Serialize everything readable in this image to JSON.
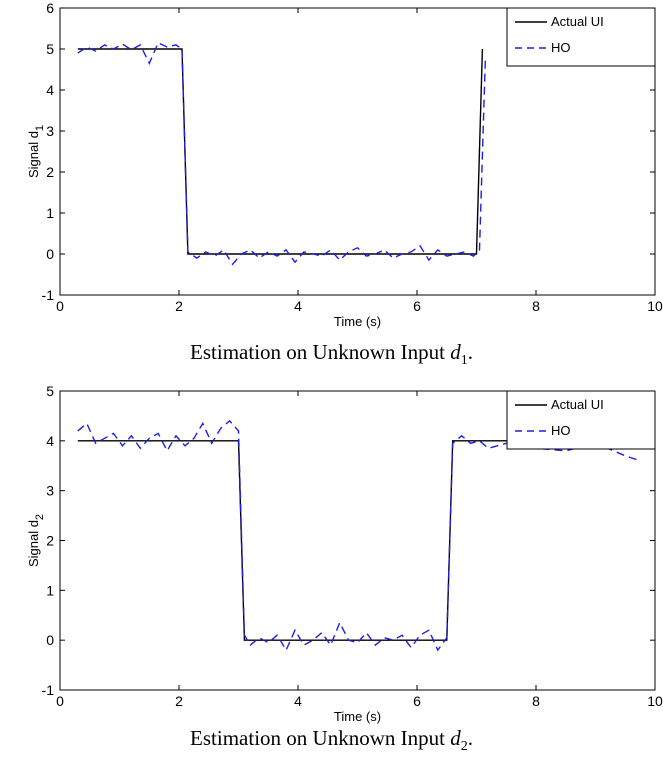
{
  "chart_data": [
    {
      "type": "line",
      "xlabel": "Time (s)",
      "ylabel_main": "Signal d",
      "ylabel_sub": "1",
      "xlim": [
        0,
        10
      ],
      "ylim": [
        -1,
        6
      ],
      "xticks": [
        0,
        2,
        4,
        6,
        8,
        10
      ],
      "yticks": [
        -1,
        0,
        1,
        2,
        3,
        4,
        5,
        6
      ],
      "grid": false,
      "legend_position": "top-right",
      "series": [
        {
          "name": "Actual UI",
          "style": "solid",
          "color": "#000000",
          "x": [
            0.3,
            2.05,
            2.15,
            7.0,
            7.1
          ],
          "y": [
            5,
            5,
            0,
            0,
            5
          ]
        },
        {
          "name": "HO",
          "style": "dashed",
          "color": "#1f1fe6",
          "x": [
            0.3,
            0.45,
            0.6,
            0.75,
            0.9,
            1.05,
            1.2,
            1.35,
            1.5,
            1.65,
            1.8,
            1.95,
            2.05,
            2.15,
            2.3,
            2.45,
            2.6,
            2.75,
            2.9,
            3.05,
            3.2,
            3.35,
            3.5,
            3.65,
            3.8,
            3.95,
            4.1,
            4.25,
            4.4,
            4.55,
            4.7,
            4.85,
            5.0,
            5.15,
            5.3,
            5.45,
            5.6,
            5.75,
            5.9,
            6.05,
            6.2,
            6.35,
            6.5,
            6.65,
            6.8,
            6.95,
            7.05,
            7.15
          ],
          "y": [
            4.9,
            5.05,
            4.95,
            5.1,
            5.0,
            5.12,
            4.98,
            5.1,
            4.65,
            5.15,
            5.05,
            5.1,
            5.0,
            0.05,
            -0.1,
            0.05,
            -0.05,
            0.1,
            -0.25,
            0.0,
            0.1,
            -0.1,
            0.05,
            -0.05,
            0.1,
            -0.2,
            0.05,
            0.0,
            -0.05,
            0.1,
            -0.15,
            0.05,
            0.15,
            -0.05,
            0.0,
            0.1,
            -0.1,
            0.0,
            0.05,
            0.2,
            -0.15,
            0.1,
            -0.05,
            0.0,
            0.05,
            -0.05,
            0.1,
            4.8
          ]
        }
      ]
    },
    {
      "type": "line",
      "xlabel": "Time (s)",
      "ylabel_main": "Signal d",
      "ylabel_sub": "2",
      "xlim": [
        0,
        10
      ],
      "ylim": [
        -1,
        5
      ],
      "xticks": [
        0,
        2,
        4,
        6,
        8,
        10
      ],
      "yticks": [
        -1,
        0,
        1,
        2,
        3,
        4,
        5
      ],
      "grid": false,
      "legend_position": "top-right",
      "series": [
        {
          "name": "Actual UI",
          "style": "solid",
          "color": "#000000",
          "x": [
            0.3,
            3.0,
            3.1,
            6.5,
            6.6,
            9.75
          ],
          "y": [
            4,
            4,
            0,
            0,
            4,
            4
          ]
        },
        {
          "name": "HO",
          "style": "dashed",
          "color": "#1f1fe6",
          "x": [
            0.3,
            0.45,
            0.6,
            0.75,
            0.9,
            1.05,
            1.2,
            1.35,
            1.5,
            1.65,
            1.8,
            1.95,
            2.1,
            2.25,
            2.4,
            2.55,
            2.7,
            2.85,
            3.0,
            3.1,
            3.2,
            3.35,
            3.5,
            3.65,
            3.8,
            3.95,
            4.1,
            4.25,
            4.4,
            4.55,
            4.7,
            4.85,
            5.0,
            5.15,
            5.3,
            5.45,
            5.6,
            5.75,
            5.9,
            6.05,
            6.2,
            6.35,
            6.5,
            6.6,
            6.75,
            6.9,
            7.05,
            7.2,
            7.5,
            8.0,
            8.5,
            9.0,
            9.5,
            9.75
          ],
          "y": [
            4.2,
            4.35,
            3.95,
            4.05,
            4.15,
            3.9,
            4.1,
            3.85,
            4.05,
            4.15,
            3.8,
            4.1,
            3.9,
            4.05,
            4.35,
            3.95,
            4.25,
            4.4,
            4.2,
            0.1,
            -0.1,
            0.05,
            -0.05,
            0.1,
            -0.2,
            0.2,
            -0.1,
            0.0,
            0.15,
            -0.1,
            0.35,
            0.0,
            -0.05,
            0.15,
            -0.1,
            0.05,
            0.0,
            0.1,
            -0.15,
            0.1,
            0.2,
            -0.2,
            0.05,
            3.95,
            4.1,
            3.95,
            4.0,
            3.85,
            3.95,
            3.85,
            3.8,
            3.95,
            3.7,
            3.6
          ]
        }
      ]
    }
  ],
  "captions": [
    {
      "text": "Estimation on Unknown Input ",
      "var": "d",
      "sub": "1",
      "tail": "."
    },
    {
      "text": "Estimation on Unknown Input ",
      "var": "d",
      "sub": "2",
      "tail": "."
    }
  ]
}
